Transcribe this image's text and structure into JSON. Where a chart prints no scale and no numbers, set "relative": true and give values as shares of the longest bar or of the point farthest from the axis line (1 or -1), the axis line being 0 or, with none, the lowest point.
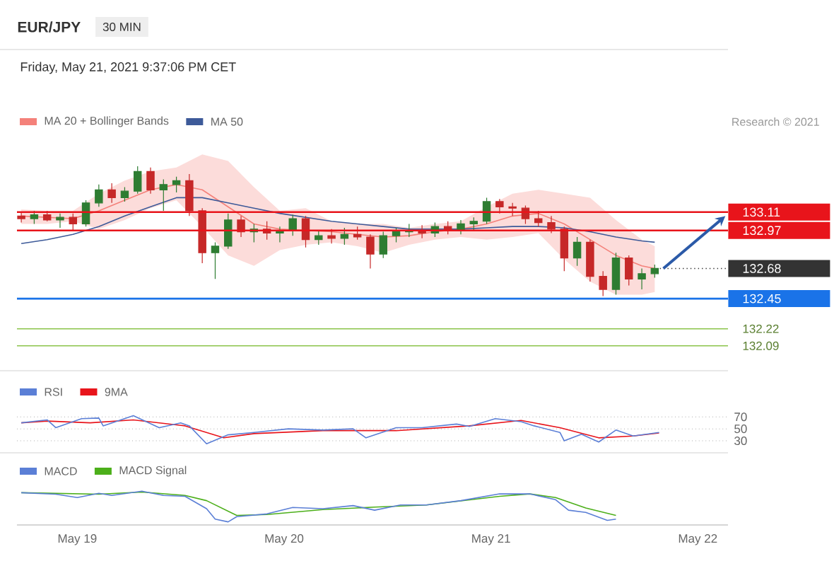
{
  "chart_data": [
    {
      "type": "candlestick",
      "title": "EUR/JPY",
      "subtitle": "Friday, May 21, 2021 9:37:06 PM CET",
      "annotations": [
        "30 MIN",
        "Research © 2021"
      ],
      "legend": "top left",
      "tick_labels": "y",
      "xlim": [
        "2021-05-18T17:00",
        "2021-05-22T03:30"
      ],
      "ylim": [
        131.9,
        134.35
      ],
      "yticks": [
        133.11,
        132.97,
        132.68,
        132.45,
        132.22,
        132.09
      ],
      "x": [
        "2021-05-18T17:30",
        "2021-05-18T19:00",
        "2021-05-18T20:30",
        "2021-05-18T22:00",
        "2021-05-18T23:30",
        "2021-05-19T01:00",
        "2021-05-19T02:30",
        "2021-05-19T04:00",
        "2021-05-19T05:30",
        "2021-05-19T07:00",
        "2021-05-19T08:30",
        "2021-05-19T10:00",
        "2021-05-19T11:30",
        "2021-05-19T13:00",
        "2021-05-19T14:30",
        "2021-05-19T16:00",
        "2021-05-19T17:30",
        "2021-05-19T19:00",
        "2021-05-19T20:30",
        "2021-05-19T22:00",
        "2021-05-19T23:30",
        "2021-05-20T01:00",
        "2021-05-20T02:30",
        "2021-05-20T04:00",
        "2021-05-20T05:30",
        "2021-05-20T07:00",
        "2021-05-20T08:30",
        "2021-05-20T10:00",
        "2021-05-20T11:30",
        "2021-05-20T13:00",
        "2021-05-20T14:30",
        "2021-05-20T16:00",
        "2021-05-20T17:30",
        "2021-05-20T19:00",
        "2021-05-20T20:30",
        "2021-05-20T22:00",
        "2021-05-20T23:30",
        "2021-05-21T01:00",
        "2021-05-21T02:30",
        "2021-05-21T04:00",
        "2021-05-21T05:30",
        "2021-05-21T07:00",
        "2021-05-21T08:30",
        "2021-05-21T10:00",
        "2021-05-21T11:30",
        "2021-05-21T13:00",
        "2021-05-21T14:30",
        "2021-05-21T16:00",
        "2021-05-21T17:30",
        "2021-05-21T19:00"
      ],
      "ohlc": [
        [
          133.08,
          133.11,
          133.03,
          133.06
        ],
        [
          133.06,
          133.12,
          133.02,
          133.09
        ],
        [
          133.09,
          133.12,
          133.04,
          133.05
        ],
        [
          133.05,
          133.1,
          132.99,
          133.07
        ],
        [
          133.07,
          133.1,
          132.97,
          133.02
        ],
        [
          133.02,
          133.2,
          133.0,
          133.18
        ],
        [
          133.18,
          133.32,
          133.15,
          133.28
        ],
        [
          133.28,
          133.33,
          133.18,
          133.22
        ],
        [
          133.22,
          133.3,
          133.19,
          133.27
        ],
        [
          133.27,
          133.46,
          133.25,
          133.42
        ],
        [
          133.42,
          133.45,
          133.25,
          133.28
        ],
        [
          133.28,
          133.36,
          133.12,
          133.32
        ],
        [
          133.32,
          133.38,
          133.26,
          133.35
        ],
        [
          133.35,
          133.4,
          133.08,
          133.12
        ],
        [
          133.12,
          133.14,
          132.72,
          132.8
        ],
        [
          132.8,
          132.88,
          132.6,
          132.85
        ],
        [
          132.85,
          133.1,
          132.83,
          133.05
        ],
        [
          133.05,
          133.08,
          132.92,
          132.96
        ],
        [
          132.96,
          133.02,
          132.88,
          132.98
        ],
        [
          132.98,
          133.04,
          132.9,
          132.95
        ],
        [
          132.95,
          133.0,
          132.88,
          132.97
        ],
        [
          132.97,
          133.09,
          132.93,
          133.06
        ],
        [
          133.06,
          133.08,
          132.84,
          132.9
        ],
        [
          132.9,
          132.97,
          132.86,
          132.93
        ],
        [
          132.93,
          132.98,
          132.87,
          132.91
        ],
        [
          132.91,
          132.99,
          132.86,
          132.94
        ],
        [
          132.94,
          133.0,
          132.9,
          132.92
        ],
        [
          132.92,
          132.94,
          132.68,
          132.79
        ],
        [
          132.79,
          132.96,
          132.76,
          132.93
        ],
        [
          132.93,
          132.99,
          132.88,
          132.96
        ],
        [
          132.96,
          133.02,
          132.92,
          132.97
        ],
        [
          132.97,
          133.01,
          132.91,
          132.95
        ],
        [
          132.95,
          133.03,
          132.92,
          133.0
        ],
        [
          133.0,
          133.04,
          132.94,
          132.97
        ],
        [
          132.97,
          133.05,
          132.94,
          133.02
        ],
        [
          133.02,
          133.07,
          132.97,
          133.04
        ],
        [
          133.04,
          133.22,
          133.02,
          133.19
        ],
        [
          133.19,
          133.21,
          133.1,
          133.15
        ],
        [
          133.15,
          133.18,
          133.08,
          133.14
        ],
        [
          133.14,
          133.16,
          133.02,
          133.06
        ],
        [
          133.06,
          133.12,
          133.0,
          133.03
        ],
        [
          133.03,
          133.08,
          132.95,
          132.98
        ],
        [
          132.98,
          133.0,
          132.66,
          132.76
        ],
        [
          132.76,
          132.92,
          132.7,
          132.88
        ],
        [
          132.88,
          132.9,
          132.58,
          132.62
        ],
        [
          132.62,
          132.66,
          132.47,
          132.52
        ],
        [
          132.52,
          132.8,
          132.48,
          132.76
        ],
        [
          132.76,
          132.78,
          132.55,
          132.6
        ],
        [
          132.6,
          132.68,
          132.52,
          132.64
        ],
        [
          132.64,
          132.71,
          132.61,
          132.68
        ]
      ],
      "series": [
        {
          "name": "MA 20 + Bollinger Bands",
          "type": "line",
          "color": "#f4817a",
          "x": [
            "2021-05-18T17:30",
            "2021-05-18T20:30",
            "2021-05-18T23:30",
            "2021-05-19T02:30",
            "2021-05-19T05:30",
            "2021-05-19T08:30",
            "2021-05-19T11:30",
            "2021-05-19T14:30",
            "2021-05-19T17:30",
            "2021-05-19T20:30",
            "2021-05-19T23:30",
            "2021-05-20T02:30",
            "2021-05-20T05:30",
            "2021-05-20T08:30",
            "2021-05-20T11:30",
            "2021-05-20T14:30",
            "2021-05-20T17:30",
            "2021-05-20T20:30",
            "2021-05-20T23:30",
            "2021-05-21T02:30",
            "2021-05-21T05:30",
            "2021-05-21T08:30",
            "2021-05-21T11:30",
            "2021-05-21T14:30",
            "2021-05-21T17:30",
            "2021-05-21T19:00"
          ],
          "values": [
            133.08,
            133.07,
            133.06,
            133.12,
            133.2,
            133.28,
            133.32,
            133.28,
            133.15,
            133.02,
            132.98,
            132.97,
            132.96,
            132.94,
            132.92,
            132.93,
            132.96,
            132.98,
            133.02,
            133.08,
            133.1,
            133.02,
            132.9,
            132.78,
            132.7,
            132.68
          ],
          "upper": [
            133.13,
            133.12,
            133.12,
            133.25,
            133.35,
            133.42,
            133.45,
            133.55,
            133.5,
            133.3,
            133.12,
            133.14,
            133.04,
            133.02,
            133.02,
            132.99,
            133.02,
            133.04,
            133.15,
            133.25,
            133.28,
            133.25,
            133.22,
            133.05,
            132.9,
            132.85
          ],
          "lower": [
            133.02,
            133.02,
            133.04,
            132.98,
            133.05,
            133.14,
            133.2,
            133.0,
            132.78,
            132.7,
            132.82,
            132.86,
            132.88,
            132.85,
            132.8,
            132.86,
            132.9,
            132.92,
            132.9,
            132.92,
            132.95,
            132.75,
            132.58,
            132.48,
            132.48,
            132.5
          ]
        },
        {
          "name": "MA 50",
          "type": "line",
          "color": "#3d5a99",
          "x": [
            "2021-05-18T17:30",
            "2021-05-18T20:30",
            "2021-05-18T23:30",
            "2021-05-19T02:30",
            "2021-05-19T05:30",
            "2021-05-19T08:30",
            "2021-05-19T11:30",
            "2021-05-19T14:30",
            "2021-05-19T17:30",
            "2021-05-19T20:30",
            "2021-05-19T23:30",
            "2021-05-20T02:30",
            "2021-05-20T05:30",
            "2021-05-20T08:30",
            "2021-05-20T11:30",
            "2021-05-20T14:30",
            "2021-05-20T17:30",
            "2021-05-20T20:30",
            "2021-05-20T23:30",
            "2021-05-21T02:30",
            "2021-05-21T05:30",
            "2021-05-21T08:30",
            "2021-05-21T11:30",
            "2021-05-21T14:30",
            "2021-05-21T17:30",
            "2021-05-21T19:00"
          ],
          "values": [
            132.87,
            132.9,
            132.94,
            133.0,
            133.08,
            133.15,
            133.22,
            133.22,
            133.18,
            133.14,
            133.1,
            133.07,
            133.04,
            133.02,
            133.0,
            132.98,
            132.98,
            132.98,
            132.99,
            133.0,
            133.0,
            132.99,
            132.96,
            132.92,
            132.89,
            132.88
          ]
        }
      ],
      "ref_lines": [
        {
          "axis": "y",
          "value": 133.11,
          "color": "#e8141b",
          "line_style": "solid"
        },
        {
          "axis": "y",
          "value": 132.97,
          "color": "#e8141b",
          "line_style": "solid"
        },
        {
          "axis": "y",
          "value": 132.68,
          "color": "#333333",
          "line_style": "dotted"
        },
        {
          "axis": "y",
          "value": 132.45,
          "color": "#1a73e8",
          "line_style": "solid"
        },
        {
          "axis": "y",
          "value": 132.22,
          "color": "#8bc34a",
          "line_style": "solid"
        },
        {
          "axis": "y",
          "value": 132.09,
          "color": "#8bc34a",
          "line_style": "solid"
        }
      ]
    },
    {
      "type": "line",
      "legend": "top left",
      "tick_labels": "y",
      "grid": "y",
      "xlim": [
        "2021-05-18T17:00",
        "2021-05-22T03:30"
      ],
      "ylim": [
        10,
        147
      ],
      "yticks": [
        70,
        50,
        30
      ],
      "series": [
        {
          "name": "RSI",
          "color": "#5b7fd6",
          "x": [
            "2021-05-18T17:30",
            "2021-05-18T20:30",
            "2021-05-18T21:30",
            "2021-05-19T00:30",
            "2021-05-19T02:30",
            "2021-05-19T03:00",
            "2021-05-19T06:30",
            "2021-05-19T09:30",
            "2021-05-19T12:00",
            "2021-05-19T13:00",
            "2021-05-19T15:00",
            "2021-05-19T17:30",
            "2021-05-19T20:30",
            "2021-05-20T00:30",
            "2021-05-20T04:30",
            "2021-05-20T08:00",
            "2021-05-20T09:30",
            "2021-05-20T13:00",
            "2021-05-20T16:00",
            "2021-05-20T20:00",
            "2021-05-20T21:30",
            "2021-05-21T00:30",
            "2021-05-21T03:30",
            "2021-05-21T05:00",
            "2021-05-21T08:00",
            "2021-05-21T08:30",
            "2021-05-21T10:30",
            "2021-05-21T12:30",
            "2021-05-21T14:30",
            "2021-05-21T16:30",
            "2021-05-21T19:30"
          ],
          "values": [
            60,
            65,
            52,
            67,
            68,
            55,
            72,
            52,
            60,
            55,
            25,
            40,
            44,
            50,
            48,
            50,
            35,
            52,
            52,
            58,
            54,
            67,
            62,
            55,
            44,
            30,
            41,
            28,
            48,
            38,
            44
          ]
        },
        {
          "name": "9MA",
          "color": "#e8141b",
          "x": [
            "2021-05-18T17:30",
            "2021-05-18T20:30",
            "2021-05-19T01:30",
            "2021-05-19T06:30",
            "2021-05-19T09:30",
            "2021-05-19T12:30",
            "2021-05-19T17:00",
            "2021-05-19T20:30",
            "2021-05-20T04:30",
            "2021-05-20T13:00",
            "2021-05-20T21:30",
            "2021-05-21T03:30",
            "2021-05-21T08:00",
            "2021-05-21T12:30",
            "2021-05-21T16:30",
            "2021-05-21T19:30"
          ],
          "values": [
            60,
            63,
            60,
            65,
            60,
            55,
            35,
            42,
            47,
            47,
            55,
            64,
            52,
            35,
            38,
            43
          ]
        }
      ]
    },
    {
      "type": "line",
      "relative": true,
      "legend": "top left",
      "tick_labels": "x",
      "xlim": [
        "2021-05-18T17:00",
        "2021-05-22T03:30"
      ],
      "xticks": [
        {
          "value": "2021-05-19",
          "label": "May 19"
        },
        {
          "value": "2021-05-20",
          "label": "May 20"
        },
        {
          "value": "2021-05-21",
          "label": "May 21"
        },
        {
          "value": "2021-05-22",
          "label": "May 22"
        }
      ],
      "series": [
        {
          "name": "MACD",
          "color": "#5b7fd6",
          "x": [
            "2021-05-18T17:30",
            "2021-05-18T21:30",
            "2021-05-19T00:00",
            "2021-05-19T02:30",
            "2021-05-19T04:00",
            "2021-05-19T07:30",
            "2021-05-19T10:00",
            "2021-05-19T12:30",
            "2021-05-19T15:00",
            "2021-05-19T16:00",
            "2021-05-19T17:30",
            "2021-05-19T18:30",
            "2021-05-19T22:00",
            "2021-05-20T01:00",
            "2021-05-20T04:30",
            "2021-05-20T08:00",
            "2021-05-20T10:30",
            "2021-05-20T13:30",
            "2021-05-20T16:30",
            "2021-05-20T20:30",
            "2021-05-21T01:00",
            "2021-05-21T04:30",
            "2021-05-21T07:30",
            "2021-05-21T09:00",
            "2021-05-21T11:00",
            "2021-05-21T13:30",
            "2021-05-21T14:30"
          ],
          "values": [
            0.95,
            0.9,
            0.79,
            0.93,
            0.86,
            1.0,
            0.86,
            0.83,
            0.43,
            0.09,
            0,
            0.17,
            0.26,
            0.47,
            0.43,
            0.53,
            0.38,
            0.55,
            0.55,
            0.69,
            0.91,
            0.91,
            0.72,
            0.38,
            0.31,
            0.05,
            0.09
          ]
        },
        {
          "name": "MACD Signal",
          "color": "#4caf1a",
          "x": [
            "2021-05-18T17:30",
            "2021-05-19T02:30",
            "2021-05-19T07:30",
            "2021-05-19T12:30",
            "2021-05-19T15:00",
            "2021-05-19T18:30",
            "2021-05-19T22:00",
            "2021-05-20T04:30",
            "2021-05-20T10:30",
            "2021-05-20T16:30",
            "2021-05-21T01:00",
            "2021-05-21T04:30",
            "2021-05-21T07:30",
            "2021-05-21T11:00",
            "2021-05-21T14:30"
          ],
          "values": [
            0.95,
            0.9,
            0.97,
            0.86,
            0.69,
            0.21,
            0.24,
            0.4,
            0.48,
            0.55,
            0.83,
            0.91,
            0.79,
            0.45,
            0.21
          ]
        }
      ]
    }
  ]
}
